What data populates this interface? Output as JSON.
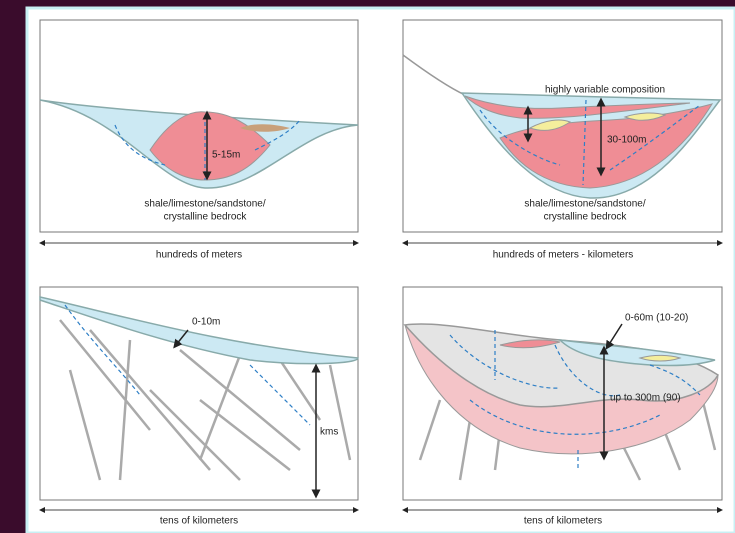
{
  "panels": [
    {
      "scale_label": "hundreds of meters",
      "annotations": [
        "5-15m",
        "shale/limestone/sandstone/",
        "crystalline bedrock"
      ]
    },
    {
      "scale_label": "hundreds of meters - kilometers",
      "annotations": [
        "highly variable composition",
        "30-100m",
        "shale/limestone/sandstone/",
        "crystalline bedrock"
      ]
    },
    {
      "scale_label": "tens of kilometers",
      "annotations": [
        "0-10m",
        "kms"
      ]
    },
    {
      "scale_label": "tens of kilometers",
      "annotations": [
        "0-60m (10-20)",
        "up to 300m (90)"
      ]
    }
  ]
}
